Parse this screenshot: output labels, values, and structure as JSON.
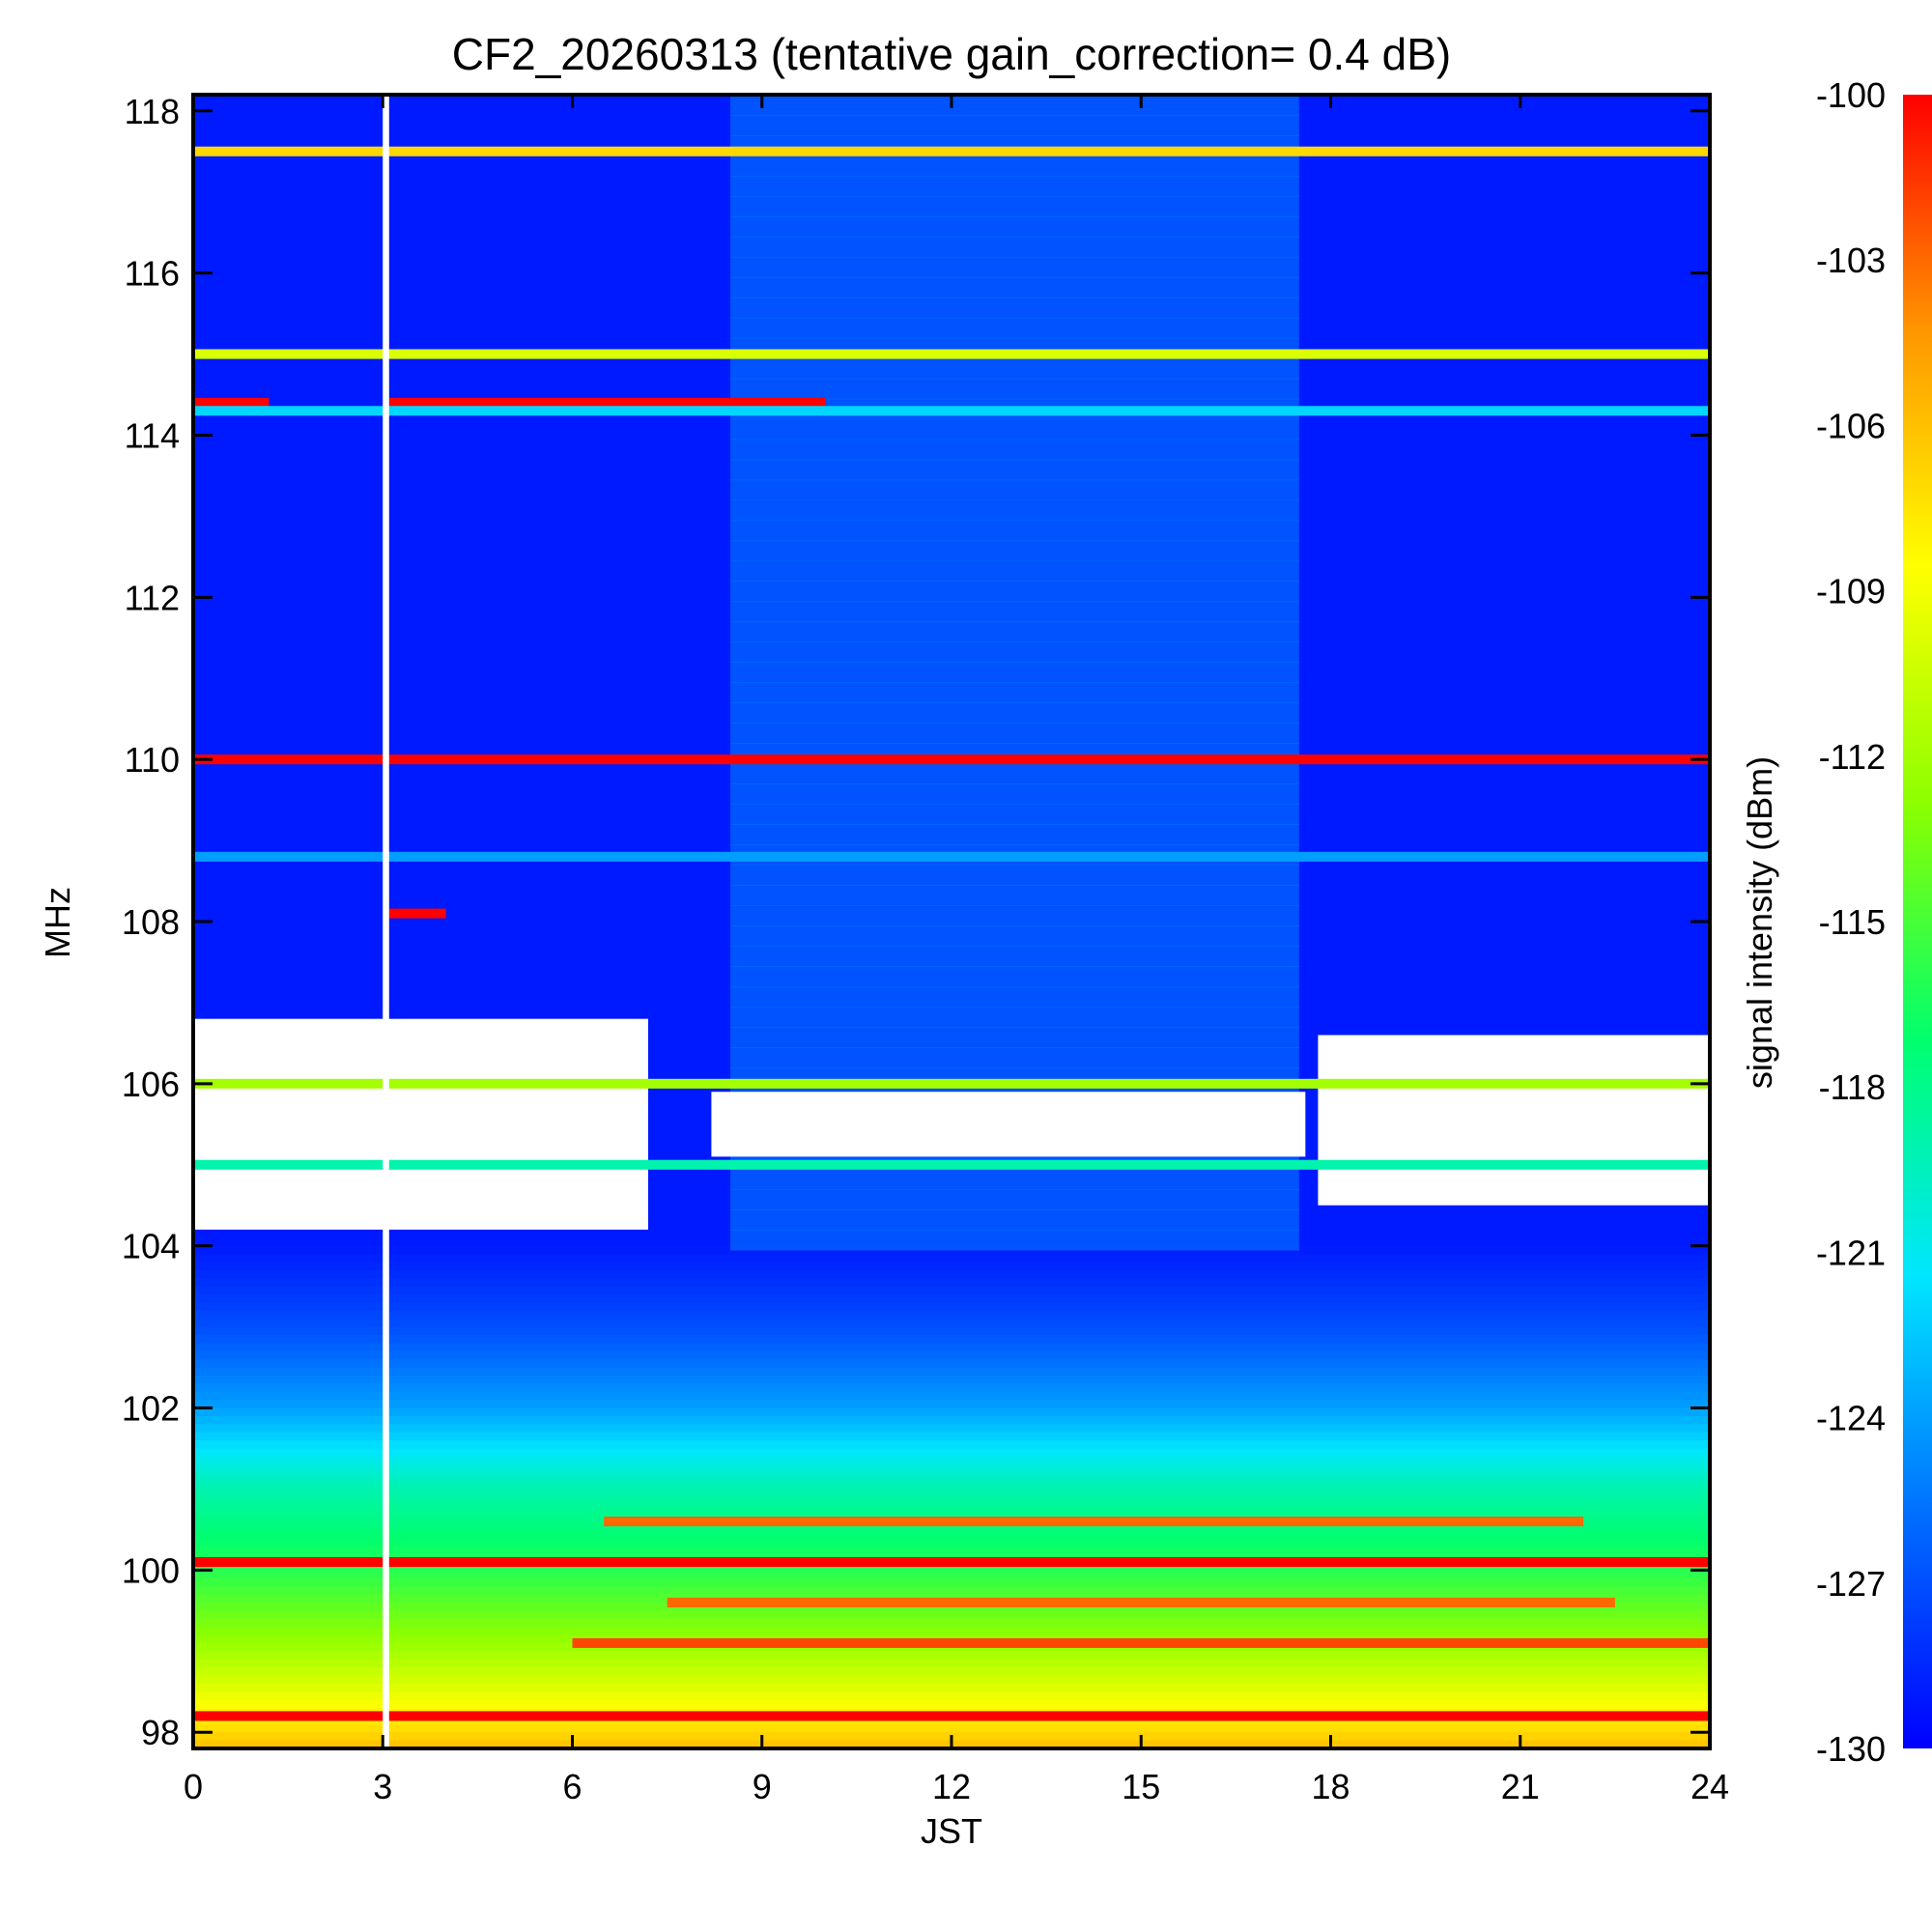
{
  "chart_data": {
    "type": "heatmap",
    "title": "CF2_20260313 (tentative gain_correction=  0.4 dB)",
    "xlabel": "JST",
    "ylabel": "MHz",
    "xlim": [
      0,
      24
    ],
    "ylim": [
      97.8,
      118.2
    ],
    "x_ticks": [
      0,
      3,
      6,
      9,
      12,
      15,
      18,
      21,
      24
    ],
    "x_tick_labels": [
      "0",
      "3",
      "6",
      "9",
      "12",
      "15",
      "18",
      "21",
      "24"
    ],
    "y_ticks": [
      98,
      100,
      102,
      104,
      106,
      108,
      110,
      112,
      114,
      116,
      118
    ],
    "y_tick_labels": [
      "98",
      "100",
      "102",
      "104",
      "106",
      "108",
      "110",
      "112",
      "114",
      "116",
      "118"
    ],
    "colorbar": {
      "label": "signal intensity (dBm)",
      "range": [
        -130,
        -100
      ],
      "ticks": [
        -100,
        -103,
        -106,
        -109,
        -112,
        -115,
        -118,
        -121,
        -124,
        -127,
        -130
      ],
      "tick_labels": [
        "-100",
        "-103",
        "-106",
        "-109",
        "-112",
        "-115",
        "-118",
        "-121",
        "-124",
        "-127",
        "-130"
      ],
      "colormap": [
        "#0000ff",
        "#0070ff",
        "#00e6ff",
        "#00ff6e",
        "#8cff00",
        "#ffff00",
        "#ff9600",
        "#ff0000"
      ]
    },
    "background_gradient": [
      {
        "freq": 118.2,
        "dbm": -129
      },
      {
        "freq": 108.0,
        "dbm": -129
      },
      {
        "freq": 104.0,
        "dbm": -129
      },
      {
        "freq": 103.0,
        "dbm": -127
      },
      {
        "freq": 102.0,
        "dbm": -124
      },
      {
        "freq": 101.0,
        "dbm": -119
      },
      {
        "freq": 100.0,
        "dbm": -116
      },
      {
        "freq": 99.0,
        "dbm": -112
      },
      {
        "freq": 98.4,
        "dbm": -109
      },
      {
        "freq": 97.8,
        "dbm": -106
      }
    ],
    "daytime_enhancement": {
      "start_hour": 8.5,
      "end_hour": 17.5,
      "freq_min": 104.0,
      "freq_max": 118.2,
      "delta_dbm": 4
    },
    "gaps": [
      {
        "name": "data-gap",
        "hour_start": 3.0,
        "hour_end": 3.1,
        "freq_min": 97.8,
        "freq_max": 118.2
      }
    ],
    "blank_regions": [
      {
        "hour_start": 0,
        "hour_end": 7.2,
        "freq_min": 104.2,
        "freq_max": 106.8
      },
      {
        "hour_start": 17.8,
        "hour_end": 24,
        "freq_min": 104.5,
        "freq_max": 106.6
      },
      {
        "hour_start": 8.2,
        "hour_end": 17.6,
        "freq_min": 105.1,
        "freq_max": 105.9
      }
    ],
    "series": [
      {
        "name": "117.5 MHz",
        "freq": 117.5,
        "hour_start": 0,
        "hour_end": 24,
        "dbm": -107
      },
      {
        "name": "115.0 MHz",
        "freq": 115.0,
        "hour_start": 0,
        "hour_end": 24,
        "dbm": -110
      },
      {
        "name": "114.4 MHz (a)",
        "freq": 114.4,
        "hour_start": 0,
        "hour_end": 1.2,
        "dbm": -100
      },
      {
        "name": "114.4 MHz (b)",
        "freq": 114.4,
        "hour_start": 3.1,
        "hour_end": 10.0,
        "dbm": -100
      },
      {
        "name": "114.3 MHz",
        "freq": 114.3,
        "hour_start": 0,
        "hour_end": 24,
        "dbm": -122
      },
      {
        "name": "110.0 MHz",
        "freq": 110.0,
        "hour_start": 0,
        "hour_end": 24,
        "dbm": -100
      },
      {
        "name": "108.8 MHz",
        "freq": 108.8,
        "hour_start": 0,
        "hour_end": 24,
        "dbm": -124
      },
      {
        "name": "108.1 MHz",
        "freq": 108.1,
        "hour_start": 3.1,
        "hour_end": 4.0,
        "dbm": -100
      },
      {
        "name": "106.0 MHz",
        "freq": 106.0,
        "hour_start": 0,
        "hour_end": 24,
        "dbm": -112
      },
      {
        "name": "105.0 MHz",
        "freq": 105.0,
        "hour_start": 0,
        "hour_end": 24,
        "dbm": -119
      },
      {
        "name": "100.1 MHz",
        "freq": 100.1,
        "hour_start": 0,
        "hour_end": 24,
        "dbm": -100
      },
      {
        "name": "99.6 MHz",
        "freq": 99.6,
        "hour_start": 7.5,
        "hour_end": 22.5,
        "dbm": -103
      },
      {
        "name": "99.1 MHz",
        "freq": 99.1,
        "hour_start": 6.0,
        "hour_end": 24,
        "dbm": -102
      },
      {
        "name": "98.2 MHz",
        "freq": 98.2,
        "hour_start": 0,
        "hour_end": 24,
        "dbm": -100
      },
      {
        "name": "100.6 MHz",
        "freq": 100.6,
        "hour_start": 6.5,
        "hour_end": 22.0,
        "dbm": -103
      }
    ]
  }
}
